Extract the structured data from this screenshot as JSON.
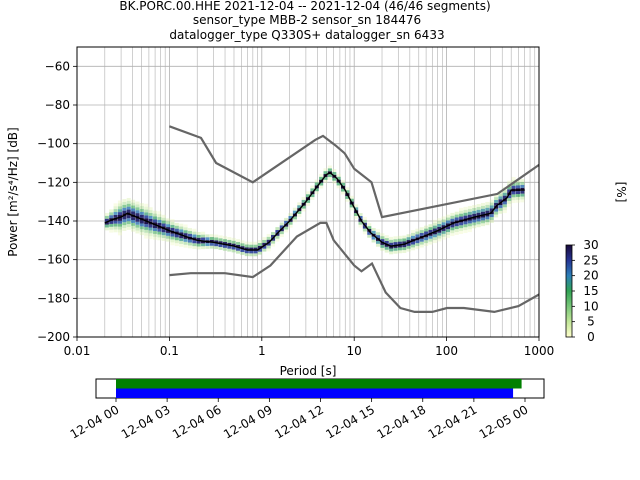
{
  "title_lines": [
    "BK.PORC.00.HHE   2021-12-04 -- 2021-12-04  (46/46 segments)",
    "sensor_type MBB-2 sensor_sn 184476",
    "datalogger_type Q330S+ datalogger_sn 6433"
  ],
  "chart_data": [
    {
      "type": "heatmap",
      "xlabel": "Period [s]",
      "ylabel": "Power [m²/s⁴/Hz] [dB]",
      "xscale": "log",
      "xlim": [
        0.01,
        1000
      ],
      "ylim": [
        -200,
        -50
      ],
      "xticks": [
        {
          "v": 0.01,
          "label": "0.01"
        },
        {
          "v": 0.1,
          "label": "0.1"
        },
        {
          "v": 1,
          "label": "1"
        },
        {
          "v": 10,
          "label": "10"
        },
        {
          "v": 100,
          "label": "100"
        },
        {
          "v": 1000,
          "label": "1000"
        }
      ],
      "yticks": [
        {
          "v": -60,
          "label": "−60"
        },
        {
          "v": -80,
          "label": "−80"
        },
        {
          "v": -100,
          "label": "−100"
        },
        {
          "v": -120,
          "label": "−120"
        },
        {
          "v": -140,
          "label": "−140"
        },
        {
          "v": -160,
          "label": "−160"
        },
        {
          "v": -180,
          "label": "−180"
        },
        {
          "v": -200,
          "label": "−200"
        }
      ],
      "grid": true,
      "colorbar": {
        "label": "[%]",
        "range": [
          0,
          30
        ],
        "ticks": [
          {
            "v": 0,
            "label": "0"
          },
          {
            "v": 5,
            "label": "5"
          },
          {
            "v": 10,
            "label": "10"
          },
          {
            "v": 15,
            "label": "15"
          },
          {
            "v": 20,
            "label": "20"
          },
          {
            "v": 25,
            "label": "25"
          },
          {
            "v": 30,
            "label": "30"
          }
        ],
        "colormap": [
          "#ffffcc",
          "#c2e699",
          "#78c679",
          "#31a354",
          "#2c7fb8",
          "#253494",
          "#1a0a3a"
        ]
      },
      "high_noise_model": [
        [
          0.1,
          -91
        ],
        [
          0.22,
          -97
        ],
        [
          0.32,
          -110
        ],
        [
          0.8,
          -120
        ],
        [
          3.8,
          -98
        ],
        [
          4.6,
          -96
        ],
        [
          6.3,
          -101
        ],
        [
          7.9,
          -105
        ],
        [
          10,
          -113
        ],
        [
          15.4,
          -120
        ],
        [
          20,
          -138
        ],
        [
          354.8,
          -126
        ],
        [
          1000,
          -111
        ]
      ],
      "low_noise_model": [
        [
          0.1,
          -168
        ],
        [
          0.17,
          -167
        ],
        [
          0.4,
          -167
        ],
        [
          0.8,
          -169
        ],
        [
          1.24,
          -163
        ],
        [
          2.4,
          -148
        ],
        [
          4.3,
          -141
        ],
        [
          5,
          -141
        ],
        [
          6,
          -150
        ],
        [
          10,
          -163
        ],
        [
          12,
          -166
        ],
        [
          15.6,
          -162
        ],
        [
          21.9,
          -177
        ],
        [
          31.6,
          -185
        ],
        [
          45,
          -187
        ],
        [
          70,
          -187
        ],
        [
          101,
          -185
        ],
        [
          154,
          -185
        ],
        [
          328,
          -187
        ],
        [
          600,
          -184
        ],
        [
          1000,
          -178
        ]
      ],
      "psd_mode": [
        [
          0.02,
          -141
        ],
        [
          0.025,
          -139
        ],
        [
          0.03,
          -138
        ],
        [
          0.035,
          -136
        ],
        [
          0.05,
          -139
        ],
        [
          0.08,
          -143
        ],
        [
          0.1,
          -145
        ],
        [
          0.15,
          -148
        ],
        [
          0.2,
          -150
        ],
        [
          0.3,
          -151
        ],
        [
          0.5,
          -153
        ],
        [
          0.7,
          -155
        ],
        [
          0.9,
          -155
        ],
        [
          1.2,
          -151
        ],
        [
          1.5,
          -146
        ],
        [
          2,
          -140
        ],
        [
          3,
          -130
        ],
        [
          4,
          -122
        ],
        [
          5,
          -116
        ],
        [
          5.5,
          -115
        ],
        [
          6.5,
          -118
        ],
        [
          8,
          -124
        ],
        [
          10,
          -133
        ],
        [
          12,
          -140
        ],
        [
          15,
          -146
        ],
        [
          20,
          -151
        ],
        [
          25,
          -153
        ],
        [
          35,
          -152
        ],
        [
          50,
          -149
        ],
        [
          80,
          -145
        ],
        [
          120,
          -141
        ],
        [
          200,
          -138
        ],
        [
          300,
          -136
        ],
        [
          350,
          -132
        ],
        [
          450,
          -128
        ],
        [
          500,
          -124
        ],
        [
          700,
          -124
        ]
      ],
      "psd_spread": [
        [
          0.02,
          4
        ],
        [
          0.03,
          12
        ],
        [
          0.05,
          12
        ],
        [
          0.1,
          8
        ],
        [
          0.3,
          4
        ],
        [
          0.5,
          4
        ],
        [
          1,
          4
        ],
        [
          3,
          3
        ],
        [
          5,
          3
        ],
        [
          10,
          3
        ],
        [
          20,
          5
        ],
        [
          30,
          5
        ],
        [
          50,
          6
        ],
        [
          100,
          7
        ],
        [
          200,
          8
        ],
        [
          400,
          8
        ],
        [
          700,
          7
        ]
      ],
      "time_axis": {
        "ticks": [
          "12-04 00",
          "12-04 03",
          "12-04 06",
          "12-04 09",
          "12-04 12",
          "12-04 15",
          "12-04 18",
          "12-04 21",
          "12-05 00"
        ],
        "coverage": [
          {
            "start_h": 0,
            "end_h": 23.8,
            "color": "#008000"
          },
          {
            "start_h": 0,
            "end_h": 23.3,
            "color": "#0000ff"
          }
        ]
      }
    }
  ]
}
